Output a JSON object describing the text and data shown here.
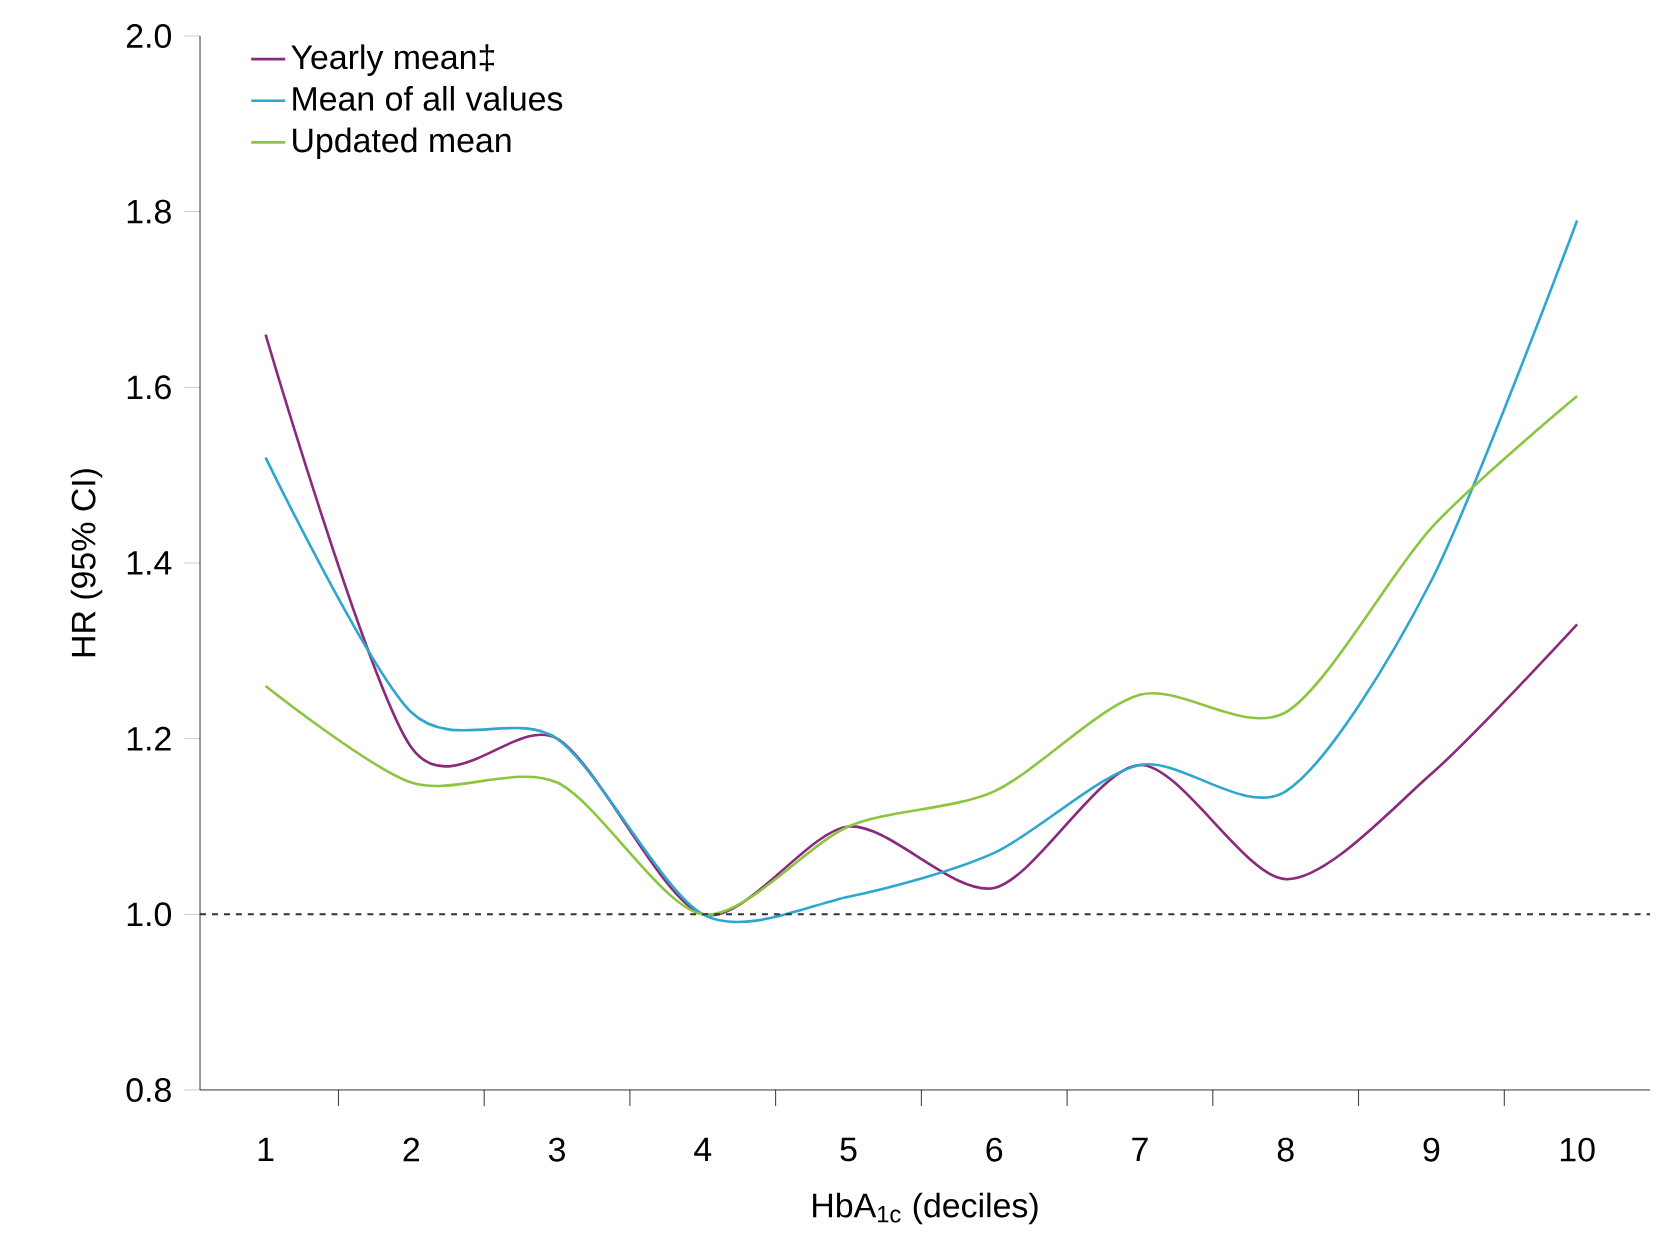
{
  "chart_data": {
    "type": "line",
    "xlabel": "HbA$_{1c}$ (deciles)",
    "ylabel": "HR (95% CI)",
    "categories": [
      "1",
      "2",
      "3",
      "4",
      "5",
      "6",
      "7",
      "8",
      "9",
      "10"
    ],
    "series": [
      {
        "name": "Yearly mean‡",
        "color": "#8b2a7a",
        "values": [
          1.66,
          1.19,
          1.2,
          1.0,
          1.1,
          1.03,
          1.17,
          1.04,
          1.16,
          1.33
        ]
      },
      {
        "name": "Mean of all values",
        "color": "#2fa6cf",
        "values": [
          1.52,
          1.23,
          1.2,
          1.0,
          1.02,
          1.07,
          1.17,
          1.14,
          1.38,
          1.79
        ]
      },
      {
        "name": "Updated mean",
        "color": "#8cc63f",
        "values": [
          1.26,
          1.15,
          1.15,
          1.0,
          1.1,
          1.14,
          1.25,
          1.23,
          1.44,
          1.59
        ]
      }
    ],
    "ylim": [
      0.8,
      2.0
    ],
    "yticks": [
      0.8,
      {
        "value": 1,
        "label": "1.0"
      },
      1.2,
      1.4,
      1.6,
      1.8,
      {
        "value": 2,
        "label": "2.0"
      }
    ],
    "ref_lines": [
      {
        "axis": "y",
        "value": 1.0,
        "color": "#333333",
        "line_style": "dashed"
      }
    ],
    "legend": "top left",
    "grid": false
  }
}
